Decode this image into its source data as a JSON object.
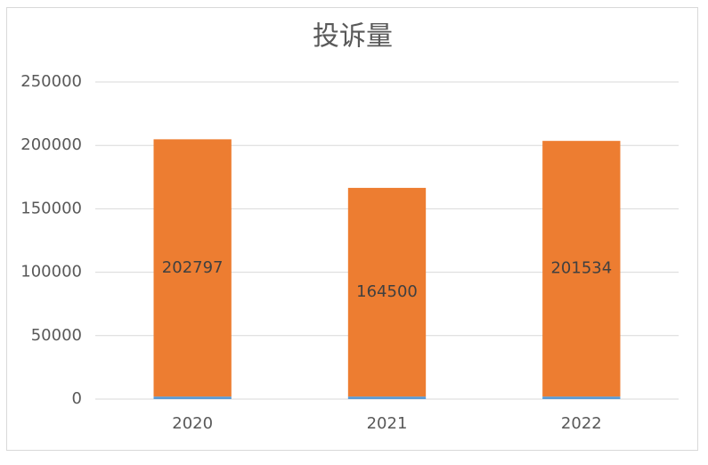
{
  "chart_data": {
    "type": "stacked_bar",
    "title": "投诉量",
    "categories": [
      "2020",
      "2021",
      "2022"
    ],
    "series": [
      {
        "color": "#5b9bd5",
        "values": [
          2000,
          2000,
          2000
        ]
      },
      {
        "color": "#ed7d31",
        "values": [
          202797,
          164500,
          201534
        ],
        "data_labels": true
      }
    ],
    "ylim": [
      0,
      250000
    ],
    "yticks": [
      0,
      50000,
      100000,
      150000,
      200000,
      250000
    ],
    "grid": true
  }
}
